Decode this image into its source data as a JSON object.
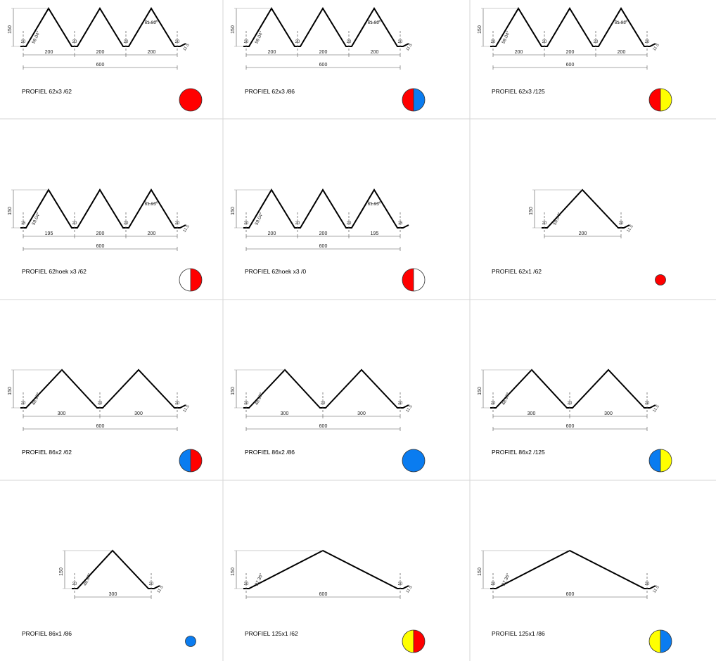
{
  "profiles": [
    {
      "title": "PROFIEL 62x3 /62",
      "shape": "triple",
      "spacing_labels": [
        "200",
        "200",
        "200"
      ],
      "total_label": "600",
      "height_label": "150",
      "small_labels": [
        "20",
        "20",
        "20",
        "20"
      ],
      "end_label": "11.5",
      "angle_left": "59.04°",
      "angle_right": "61.93°",
      "edge_marker": "",
      "dot_left": "#ff0000",
      "dot_right": "#ff0000",
      "dot_size": "large"
    },
    {
      "title": "PROFIEL 62x3 /86",
      "shape": "triple",
      "spacing_labels": [
        "200",
        "200",
        "200"
      ],
      "total_label": "600",
      "height_label": "150",
      "small_labels": [
        "20",
        "20",
        "20",
        "20"
      ],
      "end_label": "11.5",
      "angle_left": "59.04°",
      "angle_right": "61.93°",
      "edge_marker": "",
      "dot_left": "#ff0000",
      "dot_right": "#0a7cf0",
      "dot_size": "large"
    },
    {
      "title": "PROFIEL 62x3 /125",
      "shape": "triple",
      "spacing_labels": [
        "200",
        "200",
        "200"
      ],
      "total_label": "600",
      "height_label": "150",
      "small_labels": [
        "20",
        "20",
        "20",
        "20"
      ],
      "end_label": "11.5",
      "angle_left": "59.04°",
      "angle_right": "61.93°",
      "edge_marker": "",
      "dot_left": "#ff0000",
      "dot_right": "#ffff00",
      "dot_size": "large"
    },
    {
      "title": "PROFIEL 62hoek x3 /62",
      "shape": "triple",
      "spacing_labels": [
        "195",
        "200",
        "200"
      ],
      "total_label": "600",
      "height_label": "150",
      "small_labels": [
        "15",
        "20",
        "20",
        "20"
      ],
      "end_label": "11.5",
      "angle_left": "59.04°",
      "angle_right": "61.93°",
      "edge_marker": "left",
      "dot_left": "#ffffff",
      "dot_right": "#ff0000",
      "dot_size": "large"
    },
    {
      "title": "PROFIEL 62hoek x3 /0",
      "shape": "triple",
      "spacing_labels": [
        "200",
        "200",
        "195"
      ],
      "total_label": "600",
      "height_label": "150",
      "small_labels": [
        "20",
        "20",
        "20",
        "15"
      ],
      "end_label": "",
      "angle_left": "59.04°",
      "angle_right": "61.93°",
      "edge_marker": "right",
      "dot_left": "#ff0000",
      "dot_right": "#ffffff",
      "dot_size": "large"
    },
    {
      "title": "PROFIEL 62x1 /62",
      "shape": "single",
      "spacing_labels": [
        "200"
      ],
      "total_label": "",
      "height_label": "150",
      "small_labels": [
        "20",
        "20"
      ],
      "end_label": "11.5",
      "angle_left": "59.04°",
      "angle_right": "",
      "edge_marker": "",
      "dot_left": "#ff0000",
      "dot_right": "#ff0000",
      "dot_size": "small"
    },
    {
      "title": "PROFIEL 86x2 /62",
      "shape": "double",
      "spacing_labels": [
        "300",
        "300"
      ],
      "total_label": "600",
      "height_label": "150",
      "small_labels": [
        "20",
        "20",
        "20"
      ],
      "end_label": "11.5",
      "angle_left": "48.97°",
      "angle_right": "",
      "edge_marker": "",
      "dot_left": "#0a7cf0",
      "dot_right": "#ff0000",
      "dot_size": "large"
    },
    {
      "title": "PROFIEL 86x2 /86",
      "shape": "double",
      "spacing_labels": [
        "300",
        "300"
      ],
      "total_label": "600",
      "height_label": "150",
      "small_labels": [
        "20",
        "20",
        "20"
      ],
      "end_label": "11.5",
      "angle_left": "48.97°",
      "angle_right": "",
      "edge_marker": "",
      "dot_left": "#0a7cf0",
      "dot_right": "#0a7cf0",
      "dot_size": "large"
    },
    {
      "title": "PROFIEL 86x2 /125",
      "shape": "double",
      "spacing_labels": [
        "300",
        "300"
      ],
      "total_label": "600",
      "height_label": "150",
      "small_labels": [
        "20",
        "20",
        "20"
      ],
      "end_label": "11.5",
      "angle_left": "48.97°",
      "angle_right": "",
      "edge_marker": "",
      "dot_left": "#0a7cf0",
      "dot_right": "#ffff00",
      "dot_size": "large"
    },
    {
      "title": "PROFIEL 86x1 /86",
      "shape": "single",
      "spacing_labels": [
        "300"
      ],
      "total_label": "",
      "height_label": "150",
      "small_labels": [
        "20",
        "20"
      ],
      "end_label": "11.5",
      "angle_left": "48.97°",
      "angle_right": "",
      "edge_marker": "",
      "dot_left": "#0a7cf0",
      "dot_right": "#0a7cf0",
      "dot_size": "small"
    },
    {
      "title": "PROFIEL 125x1 /62",
      "shape": "wide",
      "spacing_labels": [
        "600"
      ],
      "total_label": "",
      "height_label": "150",
      "small_labels": [
        "20",
        "20"
      ],
      "end_label": "11.5",
      "angle_left": "27.36°",
      "angle_right": "",
      "edge_marker": "",
      "dot_left": "#ffff00",
      "dot_right": "#ff0000",
      "dot_size": "large"
    },
    {
      "title": "PROFIEL 125x1 /86",
      "shape": "wide",
      "spacing_labels": [
        "600"
      ],
      "total_label": "",
      "height_label": "150",
      "small_labels": [
        "20",
        "20"
      ],
      "end_label": "11.5",
      "angle_left": "27.36°",
      "angle_right": "",
      "edge_marker": "",
      "dot_left": "#ffff00",
      "dot_right": "#0a7cf0",
      "dot_size": "large"
    }
  ]
}
